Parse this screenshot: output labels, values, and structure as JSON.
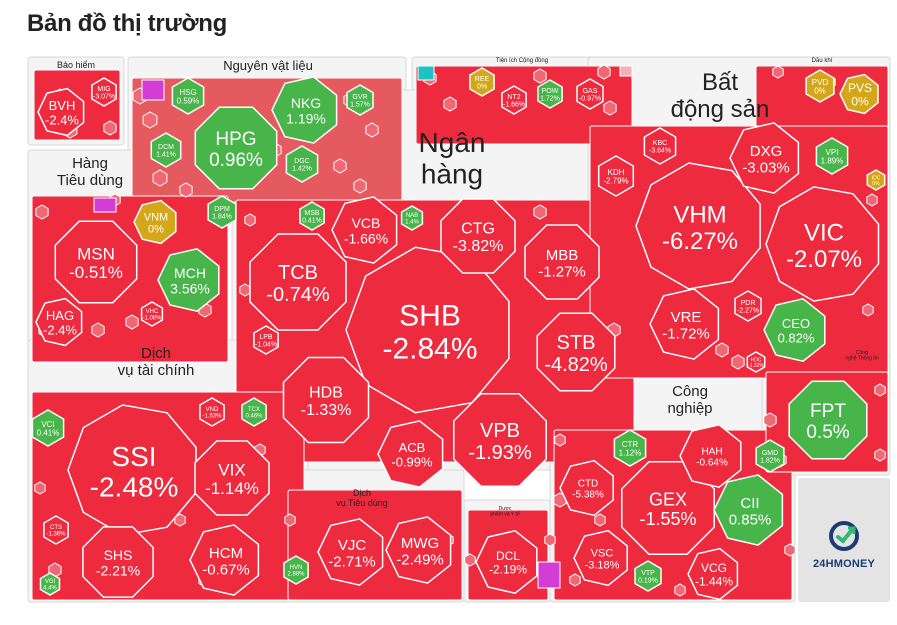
{
  "page": {
    "title": "Bản đồ thị trường"
  },
  "brand": {
    "logo_text": "24HMONEY",
    "logo_icon": "24hmoney-logo-icon"
  },
  "colors": {
    "down": "#ee2a3f",
    "down_light": "#f3b0b6",
    "up": "#48b54a",
    "flat": "#d4a71b",
    "ceiling": "#d43cd6",
    "floor": "#1ec2c2",
    "sector_bg": "#f4f4f4"
  },
  "chart_data": {
    "type": "treemap",
    "title": "Bản đồ thị trường",
    "sectors": [
      {
        "id": "insurance",
        "label": [
          "Bảo hiểm"
        ],
        "stocks": [
          {
            "ticker": "BVH",
            "change": "-2.4%"
          },
          {
            "ticker": "MIG",
            "change": "-3.07%"
          }
        ]
      },
      {
        "id": "materials",
        "label": [
          "Nguyên vật liệu"
        ],
        "stocks": [
          {
            "ticker": "HPG",
            "change": "0.96%"
          },
          {
            "ticker": "NKG",
            "change": "1.19%"
          },
          {
            "ticker": "HSG",
            "change": "0.59%"
          },
          {
            "ticker": "GVR",
            "change": "1.57%"
          },
          {
            "ticker": "DCM",
            "change": "1.41%"
          },
          {
            "ticker": "DGC",
            "change": "1.42%"
          },
          {
            "ticker": "DPM",
            "change": "1.84%"
          }
        ]
      },
      {
        "id": "utilities",
        "label": [
          "Tiện ích Cộng đồng"
        ],
        "stocks": [
          {
            "ticker": "REE",
            "change": "0%"
          },
          {
            "ticker": "NT2",
            "change": "-1.66%"
          },
          {
            "ticker": "POW",
            "change": "1.72%"
          },
          {
            "ticker": "GAS",
            "change": "-0.97%"
          }
        ]
      },
      {
        "id": "oilgas",
        "label": [
          "Dầu khí"
        ],
        "stocks": [
          {
            "ticker": "PVD",
            "change": "0%"
          },
          {
            "ticker": "PVS",
            "change": "0%"
          }
        ]
      },
      {
        "id": "consumer",
        "label": [
          "Hàng",
          "Tiêu dùng"
        ],
        "stocks": [
          {
            "ticker": "MSN",
            "change": "-0.51%"
          },
          {
            "ticker": "VNM",
            "change": "0%"
          },
          {
            "ticker": "MCH",
            "change": "3.56%"
          },
          {
            "ticker": "HAG",
            "change": "-2.4%"
          },
          {
            "ticker": "VHC",
            "change": "-1.08%"
          }
        ]
      },
      {
        "id": "banking",
        "label": [
          "Ngân",
          "hàng"
        ],
        "stocks": [
          {
            "ticker": "SHB",
            "change": "-2.84%"
          },
          {
            "ticker": "TCB",
            "change": "-0.74%"
          },
          {
            "ticker": "VCB",
            "change": "-1.66%"
          },
          {
            "ticker": "CTG",
            "change": "-3.82%"
          },
          {
            "ticker": "MBB",
            "change": "-1.27%"
          },
          {
            "ticker": "STB",
            "change": "-4.82%"
          },
          {
            "ticker": "VPB",
            "change": "-1.93%"
          },
          {
            "ticker": "HDB",
            "change": "-1.33%"
          },
          {
            "ticker": "ACB",
            "change": "-0.99%"
          },
          {
            "ticker": "MSB",
            "change": "0.41%"
          },
          {
            "ticker": "NAB",
            "change": "1.4%"
          },
          {
            "ticker": "LPB",
            "change": "-1.04%"
          }
        ]
      },
      {
        "id": "realestate",
        "label": [
          "Bất",
          "động sản"
        ],
        "stocks": [
          {
            "ticker": "VHM",
            "change": "-6.27%"
          },
          {
            "ticker": "VIC",
            "change": "-2.07%"
          },
          {
            "ticker": "DXG",
            "change": "-3.03%"
          },
          {
            "ticker": "VRE",
            "change": "-1.72%"
          },
          {
            "ticker": "CEO",
            "change": "0.82%"
          },
          {
            "ticker": "KBC",
            "change": "-3.64%"
          },
          {
            "ticker": "KDH",
            "change": "-2.79%"
          },
          {
            "ticker": "VPI",
            "change": "1.89%"
          },
          {
            "ticker": "PDR",
            "change": "-2.27%"
          },
          {
            "ticker": "IDC",
            "change": "0%"
          },
          {
            "ticker": "HDC",
            "change": "-1.32%"
          }
        ]
      },
      {
        "id": "financial",
        "label": [
          "Dịch",
          "vụ tài chính"
        ],
        "stocks": [
          {
            "ticker": "SSI",
            "change": "-2.48%"
          },
          {
            "ticker": "VIX",
            "change": "-1.14%"
          },
          {
            "ticker": "SHS",
            "change": "-2.21%"
          },
          {
            "ticker": "HCM",
            "change": "-0.67%"
          },
          {
            "ticker": "VCI",
            "change": "0.41%"
          },
          {
            "ticker": "VND",
            "change": "-1.53%"
          },
          {
            "ticker": "TCX",
            "change": "0.46%"
          },
          {
            "ticker": "CTS",
            "change": "-1.36%"
          },
          {
            "ticker": "VGI",
            "change": "4.4%"
          }
        ]
      },
      {
        "id": "consumer_services",
        "label": [
          "Dịch",
          "vụ Tiêu dùng"
        ],
        "stocks": [
          {
            "ticker": "VJC",
            "change": "-2.71%"
          },
          {
            "ticker": "MWG",
            "change": "-2.49%"
          },
          {
            "ticker": "HVN",
            "change": "2.88%"
          }
        ]
      },
      {
        "id": "pharma",
        "label": [
          "Dược",
          "phẩm và Y tế"
        ],
        "stocks": [
          {
            "ticker": "DCL",
            "change": "-2.19%"
          }
        ]
      },
      {
        "id": "industrial",
        "label": [
          "Công",
          "nghiệp"
        ],
        "stocks": [
          {
            "ticker": "GEX",
            "change": "-1.55%"
          },
          {
            "ticker": "CII",
            "change": "0.85%"
          },
          {
            "ticker": "VCG",
            "change": "-1.44%"
          },
          {
            "ticker": "VSC",
            "change": "-3.18%"
          },
          {
            "ticker": "CTD",
            "change": "-5.38%"
          },
          {
            "ticker": "HAH",
            "change": "-0.64%"
          },
          {
            "ticker": "CTR",
            "change": "1.12%"
          },
          {
            "ticker": "GMD",
            "change": "1.82%"
          },
          {
            "ticker": "VTP",
            "change": "0.19%"
          }
        ]
      },
      {
        "id": "tech",
        "label": [
          "Công",
          "nghệ Thông tin"
        ],
        "stocks": [
          {
            "ticker": "FPT",
            "change": "0.5%"
          }
        ]
      }
    ]
  }
}
